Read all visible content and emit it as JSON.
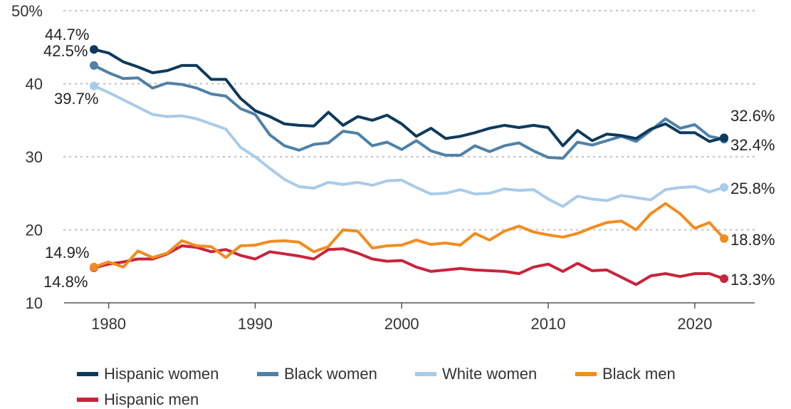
{
  "chart_data": {
    "type": "line",
    "title": "",
    "xlabel": "",
    "ylabel": "",
    "xlim": [
      1977,
      2024
    ],
    "ylim": [
      10,
      50
    ],
    "y_ticks": [
      "10",
      "20",
      "30",
      "40",
      "50%"
    ],
    "x_ticks": [
      "1980",
      "1990",
      "2000",
      "2010",
      "2020"
    ],
    "grid": "horizontal dotted",
    "legend_position": "bottom",
    "x": [
      1979,
      1980,
      1981,
      1982,
      1983,
      1984,
      1985,
      1986,
      1987,
      1988,
      1989,
      1990,
      1991,
      1992,
      1993,
      1994,
      1995,
      1996,
      1997,
      1998,
      1999,
      2000,
      2001,
      2002,
      2003,
      2004,
      2005,
      2006,
      2007,
      2008,
      2009,
      2010,
      2011,
      2012,
      2013,
      2014,
      2015,
      2016,
      2017,
      2018,
      2019,
      2020,
      2021,
      2022
    ],
    "series": [
      {
        "name": "Hispanic women",
        "color": "#0d3a5c",
        "values": [
          44.7,
          44.2,
          43.0,
          42.3,
          41.5,
          41.8,
          42.5,
          42.5,
          40.6,
          40.6,
          38.0,
          36.3,
          35.5,
          34.5,
          34.3,
          34.2,
          36.1,
          34.3,
          35.5,
          35.0,
          35.7,
          34.5,
          32.8,
          33.9,
          32.5,
          32.8,
          33.3,
          33.9,
          34.3,
          34.0,
          34.3,
          34.0,
          31.5,
          33.6,
          32.2,
          33.1,
          32.9,
          32.5,
          33.8,
          34.5,
          33.3,
          33.3,
          32.1,
          32.6
        ],
        "end_label": "32.6%",
        "start_label": "44.7%"
      },
      {
        "name": "Black women",
        "color": "#4f81a8",
        "values": [
          42.5,
          41.5,
          40.7,
          40.8,
          39.4,
          40.1,
          39.9,
          39.4,
          38.6,
          38.3,
          36.6,
          35.8,
          33.0,
          31.5,
          30.9,
          31.7,
          31.9,
          33.5,
          33.2,
          31.5,
          32.0,
          31.0,
          32.2,
          30.8,
          30.2,
          30.2,
          31.5,
          30.7,
          31.5,
          31.9,
          30.8,
          29.9,
          29.8,
          32.0,
          31.6,
          32.2,
          32.8,
          32.1,
          33.6,
          35.2,
          33.9,
          34.4,
          32.8,
          32.4
        ],
        "end_label": "32.4%",
        "start_label": "42.5%"
      },
      {
        "name": "White women",
        "color": "#a9cbea",
        "values": [
          39.7,
          38.8,
          37.8,
          36.8,
          35.8,
          35.5,
          35.6,
          35.2,
          34.5,
          33.8,
          31.3,
          30.0,
          28.4,
          26.9,
          25.9,
          25.7,
          26.5,
          26.2,
          26.5,
          26.1,
          26.7,
          26.8,
          25.8,
          24.9,
          25.0,
          25.5,
          24.9,
          25.0,
          25.6,
          25.4,
          25.5,
          24.2,
          23.2,
          24.6,
          24.2,
          24.0,
          24.7,
          24.4,
          24.1,
          25.5,
          25.8,
          25.9,
          25.2,
          25.8
        ],
        "end_label": "25.8%",
        "start_label": "39.7%"
      },
      {
        "name": "Black men",
        "color": "#f28c1f",
        "values": [
          14.9,
          15.6,
          14.9,
          17.1,
          16.2,
          16.8,
          18.5,
          17.8,
          17.7,
          16.2,
          17.8,
          17.9,
          18.4,
          18.5,
          18.3,
          17.0,
          17.7,
          20.0,
          19.8,
          17.5,
          17.8,
          17.9,
          18.6,
          18.0,
          18.2,
          17.9,
          19.5,
          18.6,
          19.8,
          20.5,
          19.7,
          19.3,
          19.0,
          19.5,
          20.3,
          21.0,
          21.2,
          20.0,
          22.2,
          23.6,
          22.2,
          20.2,
          21.0,
          18.8
        ],
        "end_label": "18.8%",
        "start_label": "14.9%"
      },
      {
        "name": "Hispanic men",
        "color": "#c8243c",
        "values": [
          14.8,
          15.3,
          15.6,
          16.0,
          16.0,
          16.7,
          17.8,
          17.6,
          17.0,
          17.3,
          16.5,
          16.0,
          17.0,
          16.7,
          16.4,
          16.0,
          17.3,
          17.4,
          16.8,
          16.0,
          15.7,
          15.8,
          14.9,
          14.3,
          14.5,
          14.7,
          14.5,
          14.4,
          14.3,
          14.0,
          14.9,
          15.3,
          14.3,
          15.4,
          14.4,
          14.5,
          13.5,
          12.5,
          13.7,
          14.0,
          13.6,
          14.0,
          14.0,
          13.3
        ],
        "end_label": "13.3%",
        "start_label": "14.8%"
      }
    ]
  }
}
